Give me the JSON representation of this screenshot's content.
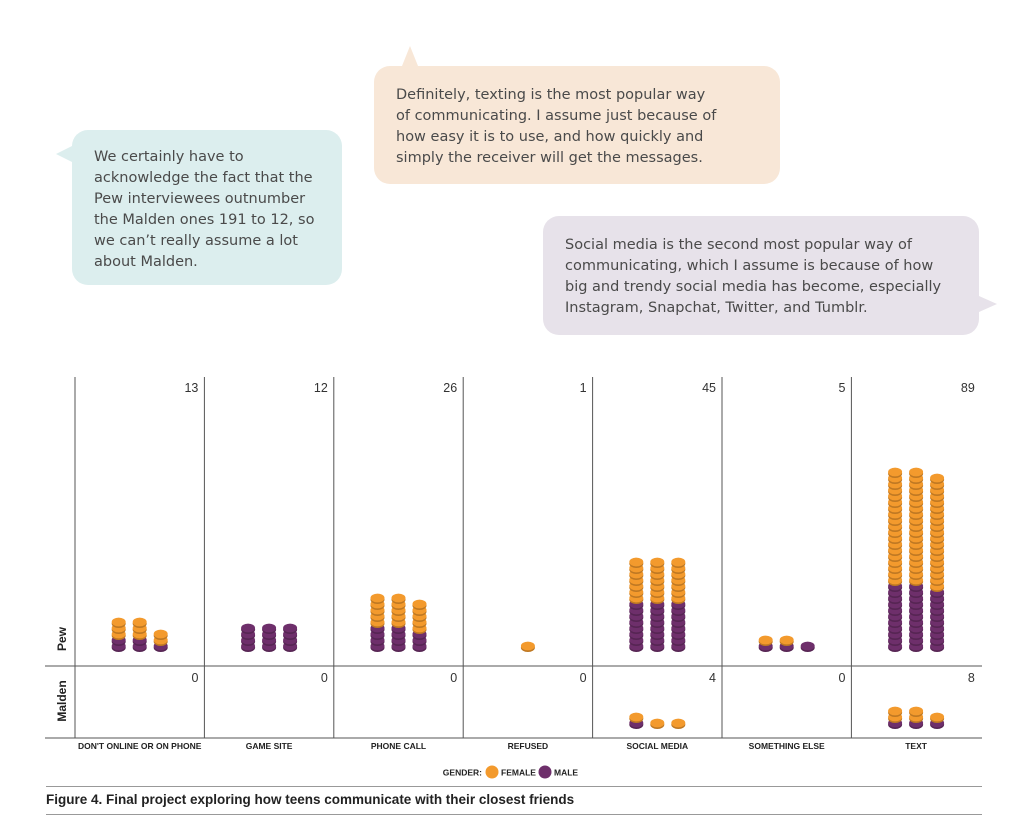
{
  "bubbles": {
    "left": [
      "We certainly have to",
      "acknowledge the fact that the",
      "Pew interviewees outnumber",
      "the Malden ones 191 to 12, so",
      "we can’t really assume a lot",
      "about Malden."
    ],
    "mid": [
      "Definitely, texting is the most popular way",
      "of communicating. I assume just because of",
      "how easy it is to use, and how quickly and",
      "simply the receiver will get the messages."
    ],
    "right": [
      "Social media is the second most popular way of",
      "communicating, which I assume is because of how",
      "big and trendy social media has become, especially",
      "Instagram, Snapchat, Twitter, and Tumblr."
    ]
  },
  "chart_data": {
    "type": "pictogram",
    "categories": [
      "DON'T ONLINE OR ON PHONE",
      "GAME SITE",
      "PHONE CALL",
      "REFUSED",
      "SOCIAL MEDIA",
      "SOMETHING ELSE",
      "TEXT"
    ],
    "rows": [
      "Pew",
      "Malden"
    ],
    "pew": {
      "totals": [
        13,
        12,
        26,
        1,
        45,
        5,
        89
      ],
      "female": [
        8,
        0,
        15,
        1,
        21,
        2,
        57
      ],
      "male": [
        5,
        12,
        11,
        0,
        24,
        3,
        32
      ]
    },
    "malden": {
      "totals": [
        0,
        0,
        0,
        0,
        4,
        0,
        8
      ],
      "female": [
        0,
        0,
        0,
        0,
        3,
        0,
        5
      ],
      "male": [
        0,
        0,
        0,
        0,
        1,
        0,
        3
      ]
    },
    "legend": {
      "title": "GENDER:",
      "items": [
        "FEMALE",
        "MALE"
      ]
    },
    "colors": {
      "female": "#f39a2d",
      "male": "#6e2f6b"
    }
  },
  "caption": "Figure 4. Final project exploring how teens communicate with their closest friends"
}
